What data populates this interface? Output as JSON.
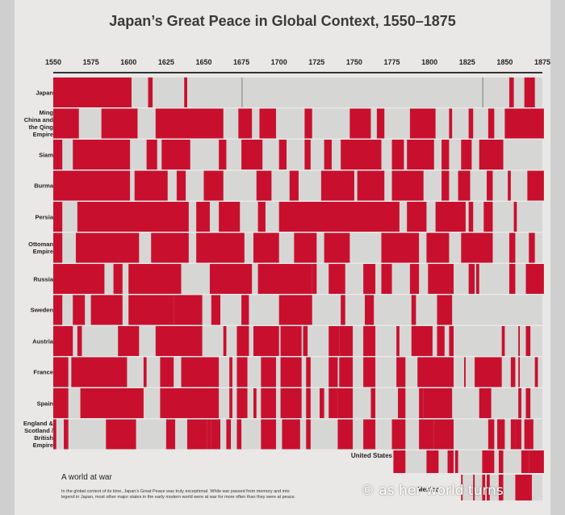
{
  "title": "Japan’s Great Peace in Global Context, 1550–1875",
  "caption": {
    "heading": "A world at war",
    "body": "In the global context of its time, Japan’s Great Peace was truly exceptional. While war passed from memory and into legend in Japan, most other major states in the early modern world were at war for more often than they were at peace."
  },
  "watermark": "© as her world turns",
  "colors": {
    "war": "#c8102e",
    "peace": "#d6d6d4",
    "japan_dark": "#a80a22",
    "minor": "#9a9a98"
  },
  "chart_data": {
    "type": "heatmap",
    "title": "Japan’s Great Peace in Global Context, 1550–1875",
    "x_range": [
      1550,
      1875
    ],
    "x_ticks": [
      1550,
      1575,
      1600,
      1625,
      1650,
      1675,
      1700,
      1725,
      1750,
      1775,
      1800,
      1825,
      1850,
      1875
    ],
    "legend": "none",
    "rows": [
      {
        "name": "Japan",
        "war_periods": [
          [
            1550,
            1601
          ],
          [
            1613,
            1615
          ],
          [
            1637,
            1638
          ],
          [
            1853,
            1855
          ],
          [
            1863,
            1869
          ]
        ]
      },
      {
        "name": "Ming China and the Qing Empire",
        "war_periods": [
          [
            1550,
            1566
          ],
          [
            1582,
            1605
          ],
          [
            1618,
            1662
          ],
          [
            1673,
            1681
          ],
          [
            1687,
            1697
          ],
          [
            1717,
            1721
          ],
          [
            1747,
            1760
          ],
          [
            1765,
            1769
          ],
          [
            1787,
            1803
          ],
          [
            1813,
            1814
          ],
          [
            1826,
            1828
          ],
          [
            1839,
            1842
          ],
          [
            1850,
            1875
          ]
        ]
      },
      {
        "name": "Siam",
        "war_periods": [
          [
            1550,
            1555
          ],
          [
            1563,
            1600
          ],
          [
            1612,
            1618
          ],
          [
            1622,
            1640
          ],
          [
            1660,
            1664
          ],
          [
            1675,
            1688
          ],
          [
            1700,
            1704
          ],
          [
            1717,
            1720
          ],
          [
            1730,
            1734
          ],
          [
            1741,
            1767
          ],
          [
            1775,
            1782
          ],
          [
            1785,
            1802
          ],
          [
            1808,
            1812
          ],
          [
            1821,
            1827
          ],
          [
            1833,
            1848
          ]
        ]
      },
      {
        "name": "Burma",
        "war_periods": [
          [
            1550,
            1600
          ],
          [
            1604,
            1625
          ],
          [
            1632,
            1637
          ],
          [
            1650,
            1662
          ],
          [
            1685,
            1694
          ],
          [
            1707,
            1712
          ],
          [
            1728,
            1749
          ],
          [
            1752,
            1769
          ],
          [
            1775,
            1795
          ],
          [
            1808,
            1812
          ],
          [
            1819,
            1826
          ],
          [
            1838,
            1841
          ],
          [
            1852,
            1853
          ],
          [
            1865,
            1875
          ]
        ]
      },
      {
        "name": "Persia",
        "war_periods": [
          [
            1550,
            1555
          ],
          [
            1566,
            1639
          ],
          [
            1645,
            1653
          ],
          [
            1660,
            1673
          ],
          [
            1686,
            1690
          ],
          [
            1700,
            1779
          ],
          [
            1785,
            1797
          ],
          [
            1804,
            1823
          ],
          [
            1826,
            1828
          ],
          [
            1836,
            1841
          ],
          [
            1856,
            1857
          ]
        ]
      },
      {
        "name": "Ottoman Empire",
        "war_periods": [
          [
            1550,
            1555
          ],
          [
            1565,
            1606
          ],
          [
            1615,
            1639
          ],
          [
            1645,
            1676
          ],
          [
            1683,
            1699
          ],
          [
            1710,
            1724
          ],
          [
            1730,
            1746
          ],
          [
            1768,
            1792
          ],
          [
            1798,
            1812
          ],
          [
            1821,
            1841
          ],
          [
            1853,
            1856
          ],
          [
            1866,
            1869
          ]
        ]
      },
      {
        "name": "Russia",
        "war_periods": [
          [
            1550,
            1583
          ],
          [
            1590,
            1595
          ],
          [
            1600,
            1634
          ],
          [
            1654,
            1681
          ],
          [
            1686,
            1700
          ],
          [
            1700,
            1721
          ],
          [
            1722,
            1724
          ],
          [
            1733,
            1743
          ],
          [
            1756,
            1763
          ],
          [
            1768,
            1774
          ],
          [
            1787,
            1792
          ],
          [
            1799,
            1815
          ],
          [
            1826,
            1829
          ],
          [
            1831,
            1832
          ],
          [
            1853,
            1856
          ],
          [
            1864,
            1875
          ]
        ]
      },
      {
        "name": "Sweden",
        "war_periods": [
          [
            1550,
            1555
          ],
          [
            1563,
            1570
          ],
          [
            1575,
            1595
          ],
          [
            1600,
            1629
          ],
          [
            1630,
            1648
          ],
          [
            1655,
            1660
          ],
          [
            1675,
            1679
          ],
          [
            1700,
            1721
          ],
          [
            1741,
            1743
          ],
          [
            1757,
            1762
          ],
          [
            1788,
            1790
          ],
          [
            1805,
            1814
          ]
        ]
      },
      {
        "name": "Austria",
        "war_periods": [
          [
            1550,
            1562
          ],
          [
            1566,
            1568
          ],
          [
            1593,
            1606
          ],
          [
            1618,
            1648
          ],
          [
            1663,
            1664
          ],
          [
            1672,
            1679
          ],
          [
            1683,
            1699
          ],
          [
            1701,
            1714
          ],
          [
            1716,
            1718
          ],
          [
            1733,
            1739
          ],
          [
            1740,
            1748
          ],
          [
            1756,
            1763
          ],
          [
            1778,
            1779
          ],
          [
            1788,
            1801
          ],
          [
            1805,
            1809
          ],
          [
            1813,
            1815
          ],
          [
            1848,
            1849
          ],
          [
            1859,
            1859
          ],
          [
            1864,
            1866
          ]
        ]
      },
      {
        "name": "France",
        "war_periods": [
          [
            1550,
            1559
          ],
          [
            1562,
            1598
          ],
          [
            1610,
            1611
          ],
          [
            1621,
            1629
          ],
          [
            1635,
            1659
          ],
          [
            1667,
            1668
          ],
          [
            1672,
            1678
          ],
          [
            1688,
            1697
          ],
          [
            1701,
            1714
          ],
          [
            1718,
            1720
          ],
          [
            1733,
            1738
          ],
          [
            1740,
            1748
          ],
          [
            1756,
            1763
          ],
          [
            1778,
            1783
          ],
          [
            1792,
            1815
          ],
          [
            1823,
            1823
          ],
          [
            1830,
            1847
          ],
          [
            1854,
            1856
          ],
          [
            1859,
            1859
          ],
          [
            1870,
            1871
          ]
        ]
      },
      {
        "name": "Spain",
        "war_periods": [
          [
            1550,
            1559
          ],
          [
            1568,
            1609
          ],
          [
            1621,
            1659
          ],
          [
            1667,
            1668
          ],
          [
            1672,
            1678
          ],
          [
            1683,
            1684
          ],
          [
            1688,
            1697
          ],
          [
            1701,
            1714
          ],
          [
            1718,
            1720
          ],
          [
            1727,
            1729
          ],
          [
            1733,
            1738
          ],
          [
            1739,
            1748
          ],
          [
            1761,
            1763
          ],
          [
            1779,
            1783
          ],
          [
            1793,
            1795
          ],
          [
            1796,
            1808
          ],
          [
            1808,
            1814
          ],
          [
            1833,
            1840
          ],
          [
            1859,
            1860
          ],
          [
            1864,
            1866
          ]
        ]
      },
      {
        "name": "England & Scotland / British Empire",
        "war_periods": [
          [
            1550,
            1551
          ],
          [
            1557,
            1559
          ],
          [
            1585,
            1604
          ],
          [
            1625,
            1630
          ],
          [
            1639,
            1651
          ],
          [
            1652,
            1654
          ],
          [
            1655,
            1660
          ],
          [
            1665,
            1667
          ],
          [
            1672,
            1674
          ],
          [
            1688,
            1697
          ],
          [
            1702,
            1713
          ],
          [
            1718,
            1720
          ],
          [
            1739,
            1748
          ],
          [
            1756,
            1763
          ],
          [
            1775,
            1783
          ],
          [
            1793,
            1802
          ],
          [
            1803,
            1815
          ],
          [
            1839,
            1842
          ],
          [
            1845,
            1849
          ],
          [
            1854,
            1856
          ],
          [
            1857,
            1860
          ],
          [
            1863,
            1868
          ]
        ]
      },
      {
        "name": "United States",
        "start": 1776,
        "war_periods": [
          [
            1776,
            1783
          ],
          [
            1798,
            1800
          ],
          [
            1801,
            1805
          ],
          [
            1812,
            1815
          ],
          [
            1817,
            1818
          ],
          [
            1835,
            1842
          ],
          [
            1846,
            1848
          ],
          [
            1861,
            1865
          ],
          [
            1866,
            1875
          ]
        ]
      },
      {
        "name": "Mexico",
        "start": 1821,
        "war_periods": [
          [
            1821,
            1821
          ],
          [
            1829,
            1829
          ],
          [
            1835,
            1836
          ],
          [
            1838,
            1839
          ],
          [
            1846,
            1848
          ],
          [
            1857,
            1867
          ]
        ]
      }
    ]
  }
}
